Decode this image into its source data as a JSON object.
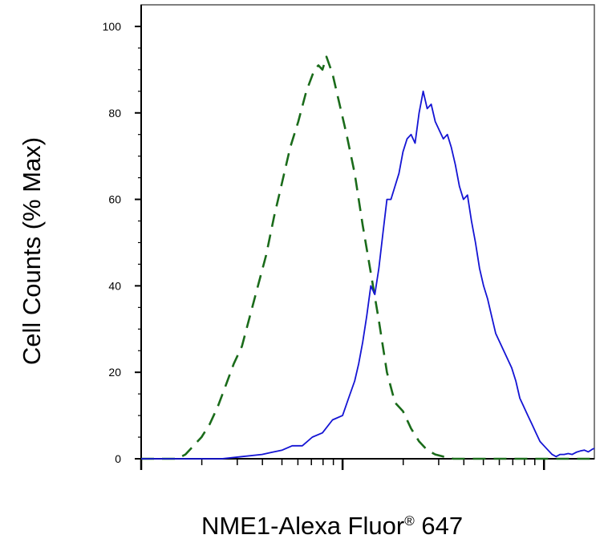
{
  "chart_data": {
    "type": "line",
    "title": "",
    "xlabel": "NME1-Alexa Fluor® 647",
    "xlabel_main": "NME1-Alexa Fluor",
    "xlabel_mark": "®",
    "xlabel_tail": " 647",
    "ylabel": "Cell Counts (% Max)",
    "x_scale": "log",
    "x_decades": 2.25,
    "ylim": [
      0,
      105
    ],
    "yticks": [
      0,
      20,
      40,
      60,
      80,
      100
    ],
    "ytick_labels": [
      "0",
      "20",
      "40",
      "60",
      "80",
      "100"
    ],
    "grid": false,
    "legend": "none",
    "series": [
      {
        "style": "dashed",
        "color": "#1a6b1a",
        "x": [
          0.0,
          0.1,
          0.18,
          0.22,
          0.26,
          0.3,
          0.34,
          0.38,
          0.42,
          0.46,
          0.5,
          0.54,
          0.58,
          0.62,
          0.66,
          0.7,
          0.74,
          0.78,
          0.82,
          0.86,
          0.88,
          0.9,
          0.92,
          0.95,
          0.98,
          1.02,
          1.06,
          1.1,
          1.14,
          1.18,
          1.22,
          1.26,
          1.3,
          1.34,
          1.38,
          1.42,
          1.46,
          1.5,
          1.55,
          1.6,
          1.7,
          1.8,
          1.9,
          2.0,
          2.1,
          2.25
        ],
        "y": [
          0,
          0,
          0,
          1,
          3,
          5,
          8,
          12,
          17,
          22,
          26,
          33,
          40,
          47,
          56,
          64,
          72,
          78,
          85,
          90,
          91,
          90,
          93,
          89,
          83,
          75,
          66,
          54,
          43,
          32,
          20,
          13,
          11,
          7,
          4,
          2,
          1,
          0.5,
          0,
          0,
          0,
          0,
          0,
          0,
          0,
          0
        ]
      },
      {
        "style": "solid",
        "color": "#1414d4",
        "x": [
          0.0,
          0.2,
          0.4,
          0.5,
          0.6,
          0.65,
          0.7,
          0.75,
          0.8,
          0.85,
          0.9,
          0.95,
          1.0,
          1.03,
          1.06,
          1.08,
          1.1,
          1.12,
          1.14,
          1.16,
          1.18,
          1.2,
          1.22,
          1.24,
          1.26,
          1.28,
          1.3,
          1.32,
          1.34,
          1.36,
          1.38,
          1.4,
          1.42,
          1.44,
          1.46,
          1.48,
          1.5,
          1.52,
          1.54,
          1.56,
          1.58,
          1.6,
          1.62,
          1.64,
          1.66,
          1.68,
          1.7,
          1.72,
          1.74,
          1.76,
          1.78,
          1.8,
          1.82,
          1.84,
          1.86,
          1.88,
          1.9,
          1.92,
          1.94,
          1.96,
          1.98,
          2.0,
          2.02,
          2.04,
          2.06,
          2.08,
          2.1,
          2.12,
          2.14,
          2.16,
          2.18,
          2.2,
          2.22,
          2.24,
          2.25
        ],
        "y": [
          0,
          0,
          0,
          0.5,
          1,
          1.5,
          2,
          3,
          3,
          5,
          6,
          9,
          10,
          14,
          18,
          22,
          27,
          33,
          40,
          38,
          44,
          52,
          60,
          60,
          63,
          66,
          71,
          74,
          75,
          73,
          80,
          85,
          81,
          82,
          78,
          76,
          74,
          75,
          72,
          68,
          63,
          60,
          61,
          55,
          50,
          44,
          40,
          37,
          33,
          29,
          27,
          25,
          23,
          21,
          18,
          14,
          12,
          10,
          8,
          6,
          4,
          3,
          2,
          1,
          0.5,
          1,
          1,
          1.2,
          1.0,
          1.5,
          1.8,
          2.0,
          1.6,
          2.2,
          2.4
        ]
      }
    ]
  }
}
